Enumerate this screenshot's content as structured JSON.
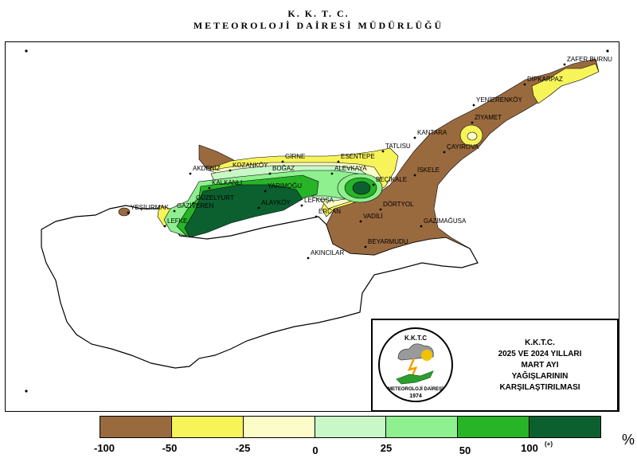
{
  "header": {
    "line1": "K. K. T. C.",
    "line2": "METEOROLOJİ DAİRESİ MÜDÜRLÜĞÜ"
  },
  "info": {
    "org": "K.K.T.C.",
    "years": "2025 VE 2024 YILLARI",
    "month": "MART AYI",
    "subject": "YAĞIŞLARININ",
    "comparison": "KARŞILAŞTIRILMASI",
    "logo_top": "K.K.T.C",
    "logo_bottom": "METEOROLOJİ DAİRESİ",
    "logo_year": "1974"
  },
  "legend": {
    "colors": [
      "#9a6a3f",
      "#f7f45a",
      "#fcfcc8",
      "#c8f7c8",
      "#8ef08e",
      "#27b427",
      "#0c6030"
    ],
    "ticks": [
      "-100",
      "-50",
      "-25",
      "0",
      "25",
      "50",
      "100"
    ],
    "plus": "(+)",
    "unit": "%"
  },
  "places": [
    {
      "name": "ZAFER BURNU"
    },
    {
      "name": "DİPKARPAZ"
    },
    {
      "name": "YENİERENKÖY"
    },
    {
      "name": "ZİYAMET"
    },
    {
      "name": "KANTARA"
    },
    {
      "name": "ÇAYIROVA"
    },
    {
      "name": "TATLISU"
    },
    {
      "name": "ESENTEPE"
    },
    {
      "name": "GİRNE"
    },
    {
      "name": "KOZANKÖY"
    },
    {
      "name": "AKDENİZ"
    },
    {
      "name": "BOĞAZ"
    },
    {
      "name": "ALEVKAYA"
    },
    {
      "name": "BEÇİKALE"
    },
    {
      "name": "İSKELE"
    },
    {
      "name": "KALKANLI"
    },
    {
      "name": "YARIMOĞU"
    },
    {
      "name": "GÜZELYURT"
    },
    {
      "name": "LEFKE"
    },
    {
      "name": "YEŞİLIRMAK"
    },
    {
      "name": "GAZİVEREN"
    },
    {
      "name": "ALAYKÖY"
    },
    {
      "name": "ERCAN"
    },
    {
      "name": "VADİLİ"
    },
    {
      "name": "DÖRTYOL"
    },
    {
      "name": "GAZİMAĞUSA"
    },
    {
      "name": "BEYARMUDU"
    },
    {
      "name": "AKINCILAR"
    },
    {
      "name": "LEFKOŞA"
    }
  ]
}
